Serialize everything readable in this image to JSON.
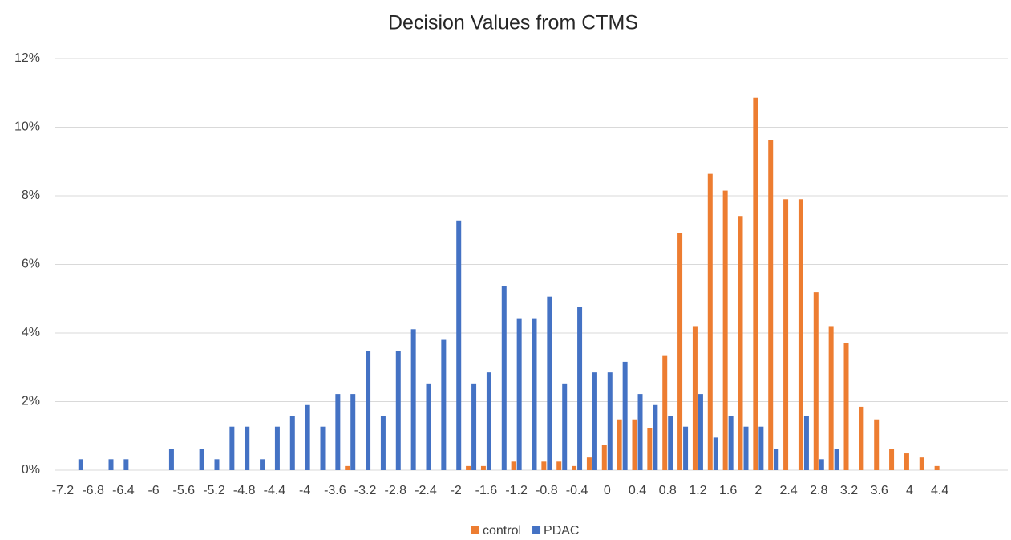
{
  "chart_data": {
    "type": "bar",
    "title": "Decision Values from CTMS",
    "categories": [
      "-7.2",
      null,
      "-6.8",
      null,
      "-6.4",
      null,
      "-6",
      null,
      "-5.6",
      null,
      "-5.2",
      null,
      "-4.8",
      null,
      "-4.4",
      null,
      "-4",
      null,
      "-3.6",
      null,
      "-3.2",
      null,
      "-2.8",
      null,
      "-2.4",
      null,
      "-2",
      null,
      "-1.6",
      null,
      "-1.2",
      null,
      "-0.8",
      null,
      "-0.4",
      null,
      "0",
      null,
      "0.4",
      null,
      "0.8",
      null,
      "1.2",
      null,
      "1.6",
      null,
      "2",
      null,
      "2.4",
      null,
      "2.8",
      null,
      "3.2",
      null,
      "3.6",
      null,
      "4",
      null,
      "4.4",
      null,
      null,
      null,
      null
    ],
    "series": [
      {
        "name": "control",
        "color": "#ed7d31",
        "values": [
          0,
          0,
          0,
          0,
          0,
          0,
          0,
          0,
          0,
          0,
          0,
          0,
          0,
          0,
          0,
          0,
          0,
          0,
          0,
          0.12,
          0,
          0,
          0,
          0,
          0,
          0,
          0,
          0.12,
          0.12,
          0,
          0.25,
          0,
          0.25,
          0.25,
          0.12,
          0.37,
          0.74,
          1.48,
          1.48,
          1.23,
          3.33,
          6.91,
          4.2,
          8.64,
          8.15,
          7.41,
          10.86,
          9.63,
          7.9,
          7.9,
          5.19,
          4.2,
          3.7,
          1.85,
          1.48,
          0.62,
          0.49,
          0.37,
          0.12,
          0,
          0,
          0,
          0
        ]
      },
      {
        "name": "PDAC",
        "color": "#4472c4",
        "values": [
          0,
          0.32,
          0,
          0.32,
          0.32,
          0,
          0,
          0.63,
          0,
          0.63,
          0.32,
          1.27,
          1.27,
          0.32,
          1.27,
          1.58,
          1.9,
          1.27,
          2.22,
          2.22,
          3.48,
          1.58,
          3.48,
          4.11,
          2.53,
          3.8,
          7.28,
          2.53,
          2.85,
          5.38,
          4.43,
          4.43,
          5.06,
          2.53,
          4.75,
          2.85,
          2.85,
          3.16,
          2.22,
          1.9,
          1.58,
          1.27,
          2.22,
          0.95,
          1.58,
          1.27,
          1.27,
          0.63,
          0,
          1.58,
          0.32,
          0.63,
          0,
          0,
          0,
          0,
          0,
          0,
          0,
          0,
          0,
          0,
          0
        ]
      }
    ],
    "ylim": [
      0,
      12
    ],
    "yticks": [
      {
        "value": 0,
        "label": "0%"
      },
      {
        "value": 2,
        "label": "2%"
      },
      {
        "value": 4,
        "label": "4%"
      },
      {
        "value": 6,
        "label": "6%"
      },
      {
        "value": 8,
        "label": "8%"
      },
      {
        "value": 10,
        "label": "10%"
      },
      {
        "value": 12,
        "label": "12%"
      }
    ],
    "grid": true,
    "legend": "bottom"
  }
}
